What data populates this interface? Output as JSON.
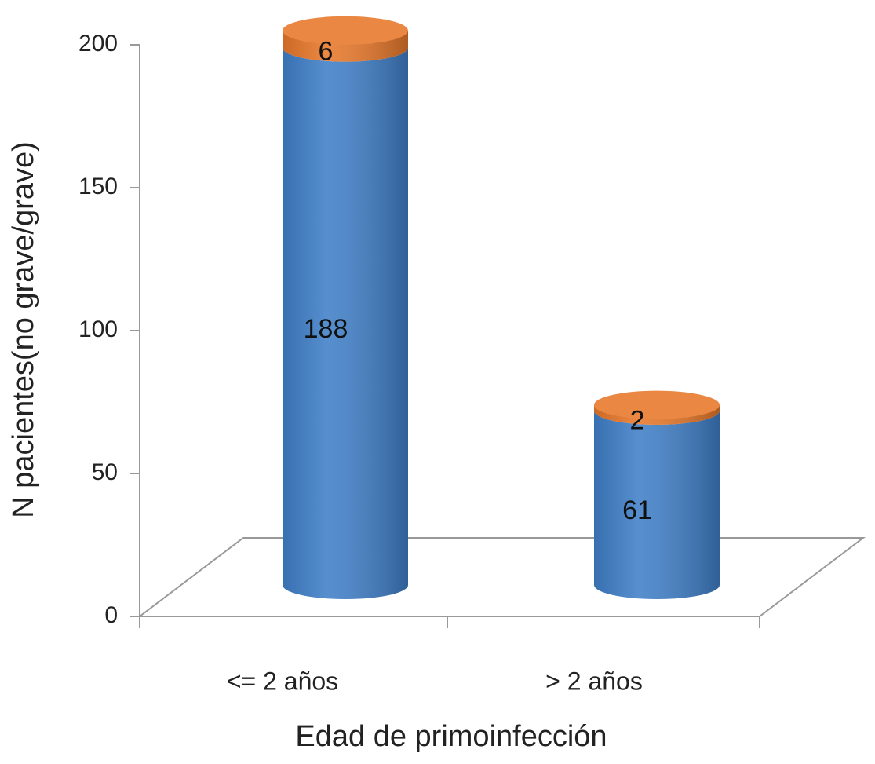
{
  "chart_data": {
    "type": "cylinder-stacked",
    "x_label": "Edad de primoinfección",
    "y_label": "N pacientes(no grave/grave)",
    "categories": [
      "<= 2 años",
      "> 2 años"
    ],
    "series": [
      {
        "color": "#3f7fc8",
        "values": [
          188,
          61
        ]
      },
      {
        "color": "#e8782a",
        "values": [
          6,
          2
        ]
      }
    ],
    "ylim": [
      0,
      200
    ],
    "yticks": [
      0,
      50,
      100,
      150,
      200
    ]
  }
}
